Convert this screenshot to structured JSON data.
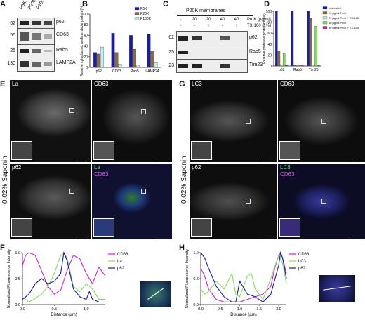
{
  "panels": {
    "A": {
      "label": "A",
      "columns": [
        "P5K",
        "P20K",
        "P100K"
      ],
      "rows": [
        {
          "mw": "62",
          "name": "p62"
        },
        {
          "mw": "55",
          "name": "CD63"
        },
        {
          "mw": "25",
          "name": "Rab5"
        },
        {
          "mw": "130",
          "name": "LAMP2A"
        }
      ]
    },
    "B": {
      "label": "B"
    },
    "C": {
      "label": "C",
      "title": "P20K membranes",
      "prok_label": "ProK (µg/ml)",
      "tx_label": "TX-100 (1%)",
      "prok_values": [
        "-",
        "20",
        "20",
        "40",
        "40"
      ],
      "tx_values": [
        "-",
        "-",
        "+",
        "-",
        "+"
      ],
      "rows": [
        {
          "mw": "62",
          "name": "p62"
        },
        {
          "mw": "25",
          "name": "Rab5"
        },
        {
          "mw": "23",
          "name": "Tim23"
        }
      ]
    },
    "D": {
      "label": "D"
    },
    "E": {
      "label": "E",
      "condition": "0.02% Saponin",
      "tiles": {
        "la": "La",
        "cd63": "CD63",
        "p62": "p62",
        "merge_1": "La",
        "merge_2": "CD63"
      }
    },
    "G": {
      "label": "G",
      "condition": "0.02% Saponin",
      "tiles": {
        "lc3": "LC3",
        "cd63": "CD63",
        "p62": "p62",
        "merge_1": "LC3",
        "merge_2": "CD63"
      }
    },
    "F": {
      "label": "F"
    },
    "H": {
      "label": "H"
    }
  },
  "colors": {
    "magenta": "#d11fd1",
    "green": "#7fe05a",
    "blue": "#1a1ab0",
    "brown": "#8b6a3e",
    "cyan": "#bff1ee"
  },
  "chart_data": [
    {
      "id": "B",
      "type": "bar",
      "ylabel": "Relative cytoplasmic sedimentable protein (%)",
      "categories": [
        "p62",
        "CD63",
        "Rab5",
        "LAMP2A"
      ],
      "ylim": [
        0,
        100
      ],
      "yticks": [
        0,
        20,
        40,
        60,
        80,
        100
      ],
      "legend_position": "top-right",
      "series": [
        {
          "name": "P5K",
          "color": "#1a1ab0",
          "values": [
            28,
            64,
            60,
            62
          ]
        },
        {
          "name": "P20K",
          "color": "#8b6a3e",
          "values": [
            25,
            28,
            34,
            30
          ]
        },
        {
          "name": "P100K",
          "color": "#bff1ee",
          "values": [
            38,
            6,
            4,
            9
          ]
        }
      ]
    },
    {
      "id": "D",
      "type": "bar",
      "ylabel": "Relative protease protection (%)",
      "categories": [
        "p62",
        "Rab5",
        "Tim23"
      ],
      "ylim": [
        0,
        100
      ],
      "yticks": [
        0,
        20,
        40,
        60,
        80,
        100
      ],
      "legend_position": "top-right",
      "series": [
        {
          "name": "Untreated",
          "color": "#1a1ab0",
          "values": [
            100,
            100,
            100
          ]
        },
        {
          "name": "20 µg/ml ProK",
          "color": "#8b6a3e",
          "values": [
            27,
            1,
            87
          ]
        },
        {
          "name": "20 µg/ml ProK + TX-100",
          "color": "#bff1ee",
          "values": [
            2,
            1,
            2
          ]
        },
        {
          "name": "40 µg/ml ProK",
          "color": "#7fe05a",
          "values": [
            23,
            1,
            73
          ]
        },
        {
          "name": "40 µg/ml ProK + TX-100",
          "color": "#d11fd1",
          "values": [
            1,
            1,
            1
          ]
        }
      ]
    },
    {
      "id": "F",
      "type": "line",
      "ylabel": "Normalized Fluorescence Intensity",
      "xlabel": "Distance (µm)",
      "xlim": [
        0,
        1.3
      ],
      "ylim": [
        0,
        1.0
      ],
      "xticks": [
        0,
        0.5,
        1.0
      ],
      "xtick_labels": [
        "0.0",
        "0.5",
        "1.0"
      ],
      "yticks": [
        0,
        0.5,
        1.0
      ],
      "ytick_labels": [
        "0.0",
        "0.5",
        "1.0"
      ],
      "legend_position": "right",
      "series": [
        {
          "name": "CD63",
          "color": "#d11fd1",
          "x": [
            0,
            0.05,
            0.1,
            0.2,
            0.3,
            0.4,
            0.5,
            0.6,
            0.7,
            0.8,
            0.9,
            1.0,
            1.1,
            1.2,
            1.3
          ],
          "y": [
            0.75,
            0.95,
            1.0,
            0.95,
            0.65,
            0.35,
            0.2,
            0.28,
            0.65,
            0.95,
            0.88,
            0.6,
            0.4,
            0.72,
            0.55
          ]
        },
        {
          "name": "La",
          "color": "#7fe05a",
          "x": [
            0,
            0.1,
            0.2,
            0.3,
            0.4,
            0.5,
            0.6,
            0.65,
            0.7,
            0.8,
            0.9,
            1.0,
            1.1,
            1.2,
            1.3
          ],
          "y": [
            0.15,
            0.05,
            0.12,
            0.2,
            0.35,
            0.6,
            0.95,
            1.0,
            0.9,
            0.35,
            0.25,
            0.4,
            0.3,
            0.1,
            0.1
          ]
        },
        {
          "name": "p62",
          "color": "#1a1ab0",
          "x": [
            0,
            0.1,
            0.2,
            0.3,
            0.4,
            0.5,
            0.6,
            0.65,
            0.7,
            0.8,
            0.9,
            1.0,
            1.05,
            1.1,
            1.2
          ],
          "y": [
            0.1,
            0.2,
            0.4,
            0.5,
            0.4,
            0.45,
            0.6,
            1.0,
            0.85,
            0.3,
            0.15,
            0.1,
            0.25,
            0.1,
            0.05
          ]
        }
      ]
    },
    {
      "id": "H",
      "type": "line",
      "ylabel": "Normalized Fluorescence Intensity",
      "xlabel": "Distance (µm)",
      "xlim": [
        0,
        2.2
      ],
      "ylim": [
        0,
        1.0
      ],
      "xticks": [
        0,
        0.5,
        1.0,
        1.5,
        2.0
      ],
      "xtick_labels": [
        "0.0",
        "0.5",
        "1.0",
        "1.5",
        "2.0"
      ],
      "yticks": [
        0,
        0.5,
        1.0
      ],
      "ytick_labels": [
        "0.0",
        "0.5",
        "1.0"
      ],
      "legend_position": "right",
      "series": [
        {
          "name": "CD63",
          "color": "#d11fd1",
          "x": [
            0,
            0.1,
            0.2,
            0.4,
            0.6,
            0.8,
            1.0,
            1.2,
            1.4,
            1.6,
            1.8,
            1.9,
            2.0,
            2.05,
            2.1,
            2.2
          ],
          "y": [
            0.7,
            0.55,
            0.3,
            0.1,
            0.05,
            0.05,
            0.05,
            0.1,
            0.15,
            0.2,
            0.35,
            0.7,
            0.95,
            1.0,
            0.9,
            0.6
          ]
        },
        {
          "name": "LC3",
          "color": "#7fe05a",
          "x": [
            0,
            0.1,
            0.2,
            0.4,
            0.6,
            0.8,
            0.9,
            1.0,
            1.2,
            1.3,
            1.4,
            1.6,
            1.8,
            2.0,
            2.1,
            2.2
          ],
          "y": [
            0.3,
            0.2,
            0.25,
            0.45,
            0.3,
            0.6,
            0.2,
            0.15,
            0.55,
            0.6,
            0.3,
            0.1,
            0.5,
            0.95,
            0.8,
            0.4
          ]
        },
        {
          "name": "p62",
          "color": "#1a1ab0",
          "x": [
            0,
            0.1,
            0.2,
            0.4,
            0.6,
            0.8,
            0.9,
            1.0,
            1.2,
            1.4,
            1.6,
            1.8,
            2.0,
            2.05,
            2.1,
            2.2
          ],
          "y": [
            1.0,
            0.9,
            0.7,
            0.35,
            0.15,
            0.05,
            0.05,
            0.45,
            0.2,
            0.15,
            0.05,
            0.2,
            0.75,
            1.0,
            0.9,
            0.5
          ]
        }
      ]
    }
  ]
}
